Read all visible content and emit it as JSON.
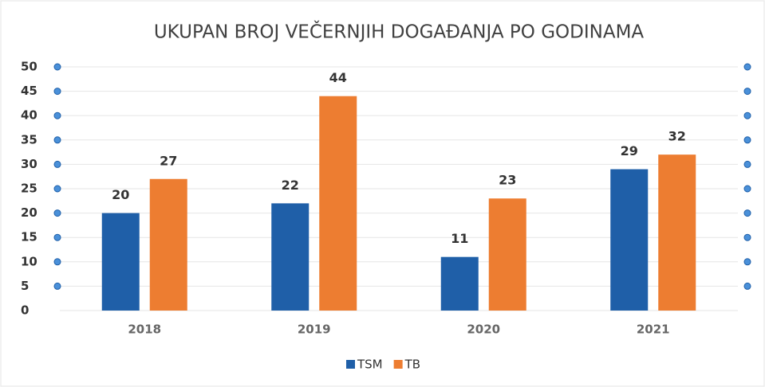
{
  "chart_data": {
    "type": "bar",
    "title": "UKUPAN BROJ VEČERNJIH DOGAĐANJA PO GODINAMA",
    "categories": [
      "2018",
      "2019",
      "2020",
      "2021"
    ],
    "series": [
      {
        "name": "TSM",
        "color": "#1f5fa8",
        "values": [
          20,
          22,
          11,
          29
        ]
      },
      {
        "name": "TB",
        "color": "#ed7d31",
        "values": [
          27,
          44,
          23,
          32
        ]
      }
    ],
    "ylim": [
      0,
      50
    ],
    "yticks": [
      0,
      5,
      10,
      15,
      20,
      25,
      30,
      35,
      40,
      45,
      50
    ],
    "grid": true,
    "legend": "bottom"
  }
}
